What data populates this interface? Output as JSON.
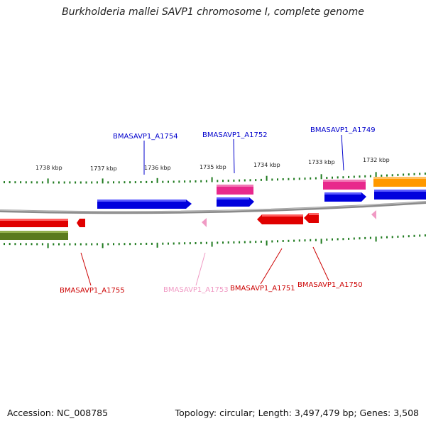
{
  "title": "Burkholderia mallei SAVP1 chromosome I, complete genome",
  "footer": {
    "accession": "Accession: NC_008785",
    "summary": "Topology: circular; Length: 3,497,479 bp; Genes: 3,508"
  },
  "scale_labels": [
    "1738 kbp",
    "1737 kbp",
    "1736 kbp",
    "1735 kbp",
    "1734 kbp",
    "1733 kbp",
    "1732 kbp"
  ],
  "gene_labels": {
    "a1754": "BMASAVP1_A1754",
    "a1752": "BMASAVP1_A1752",
    "a1749": "BMASAVP1_A1749",
    "a1755": "BMASAVP1_A1755",
    "a1753": "BMASAVP1_A1753",
    "a1751": "BMASAVP1_A1751",
    "a1750": "BMASAVP1_A1750"
  },
  "colors": {
    "blue": "#0000dd",
    "red": "#e00000",
    "pink": "#e8288c",
    "light_pink": "#f09ac4",
    "orange": "#ff9900",
    "olive": "#5a7a1e",
    "tick_green": "#1e7a1e",
    "backbone": "#888888"
  }
}
